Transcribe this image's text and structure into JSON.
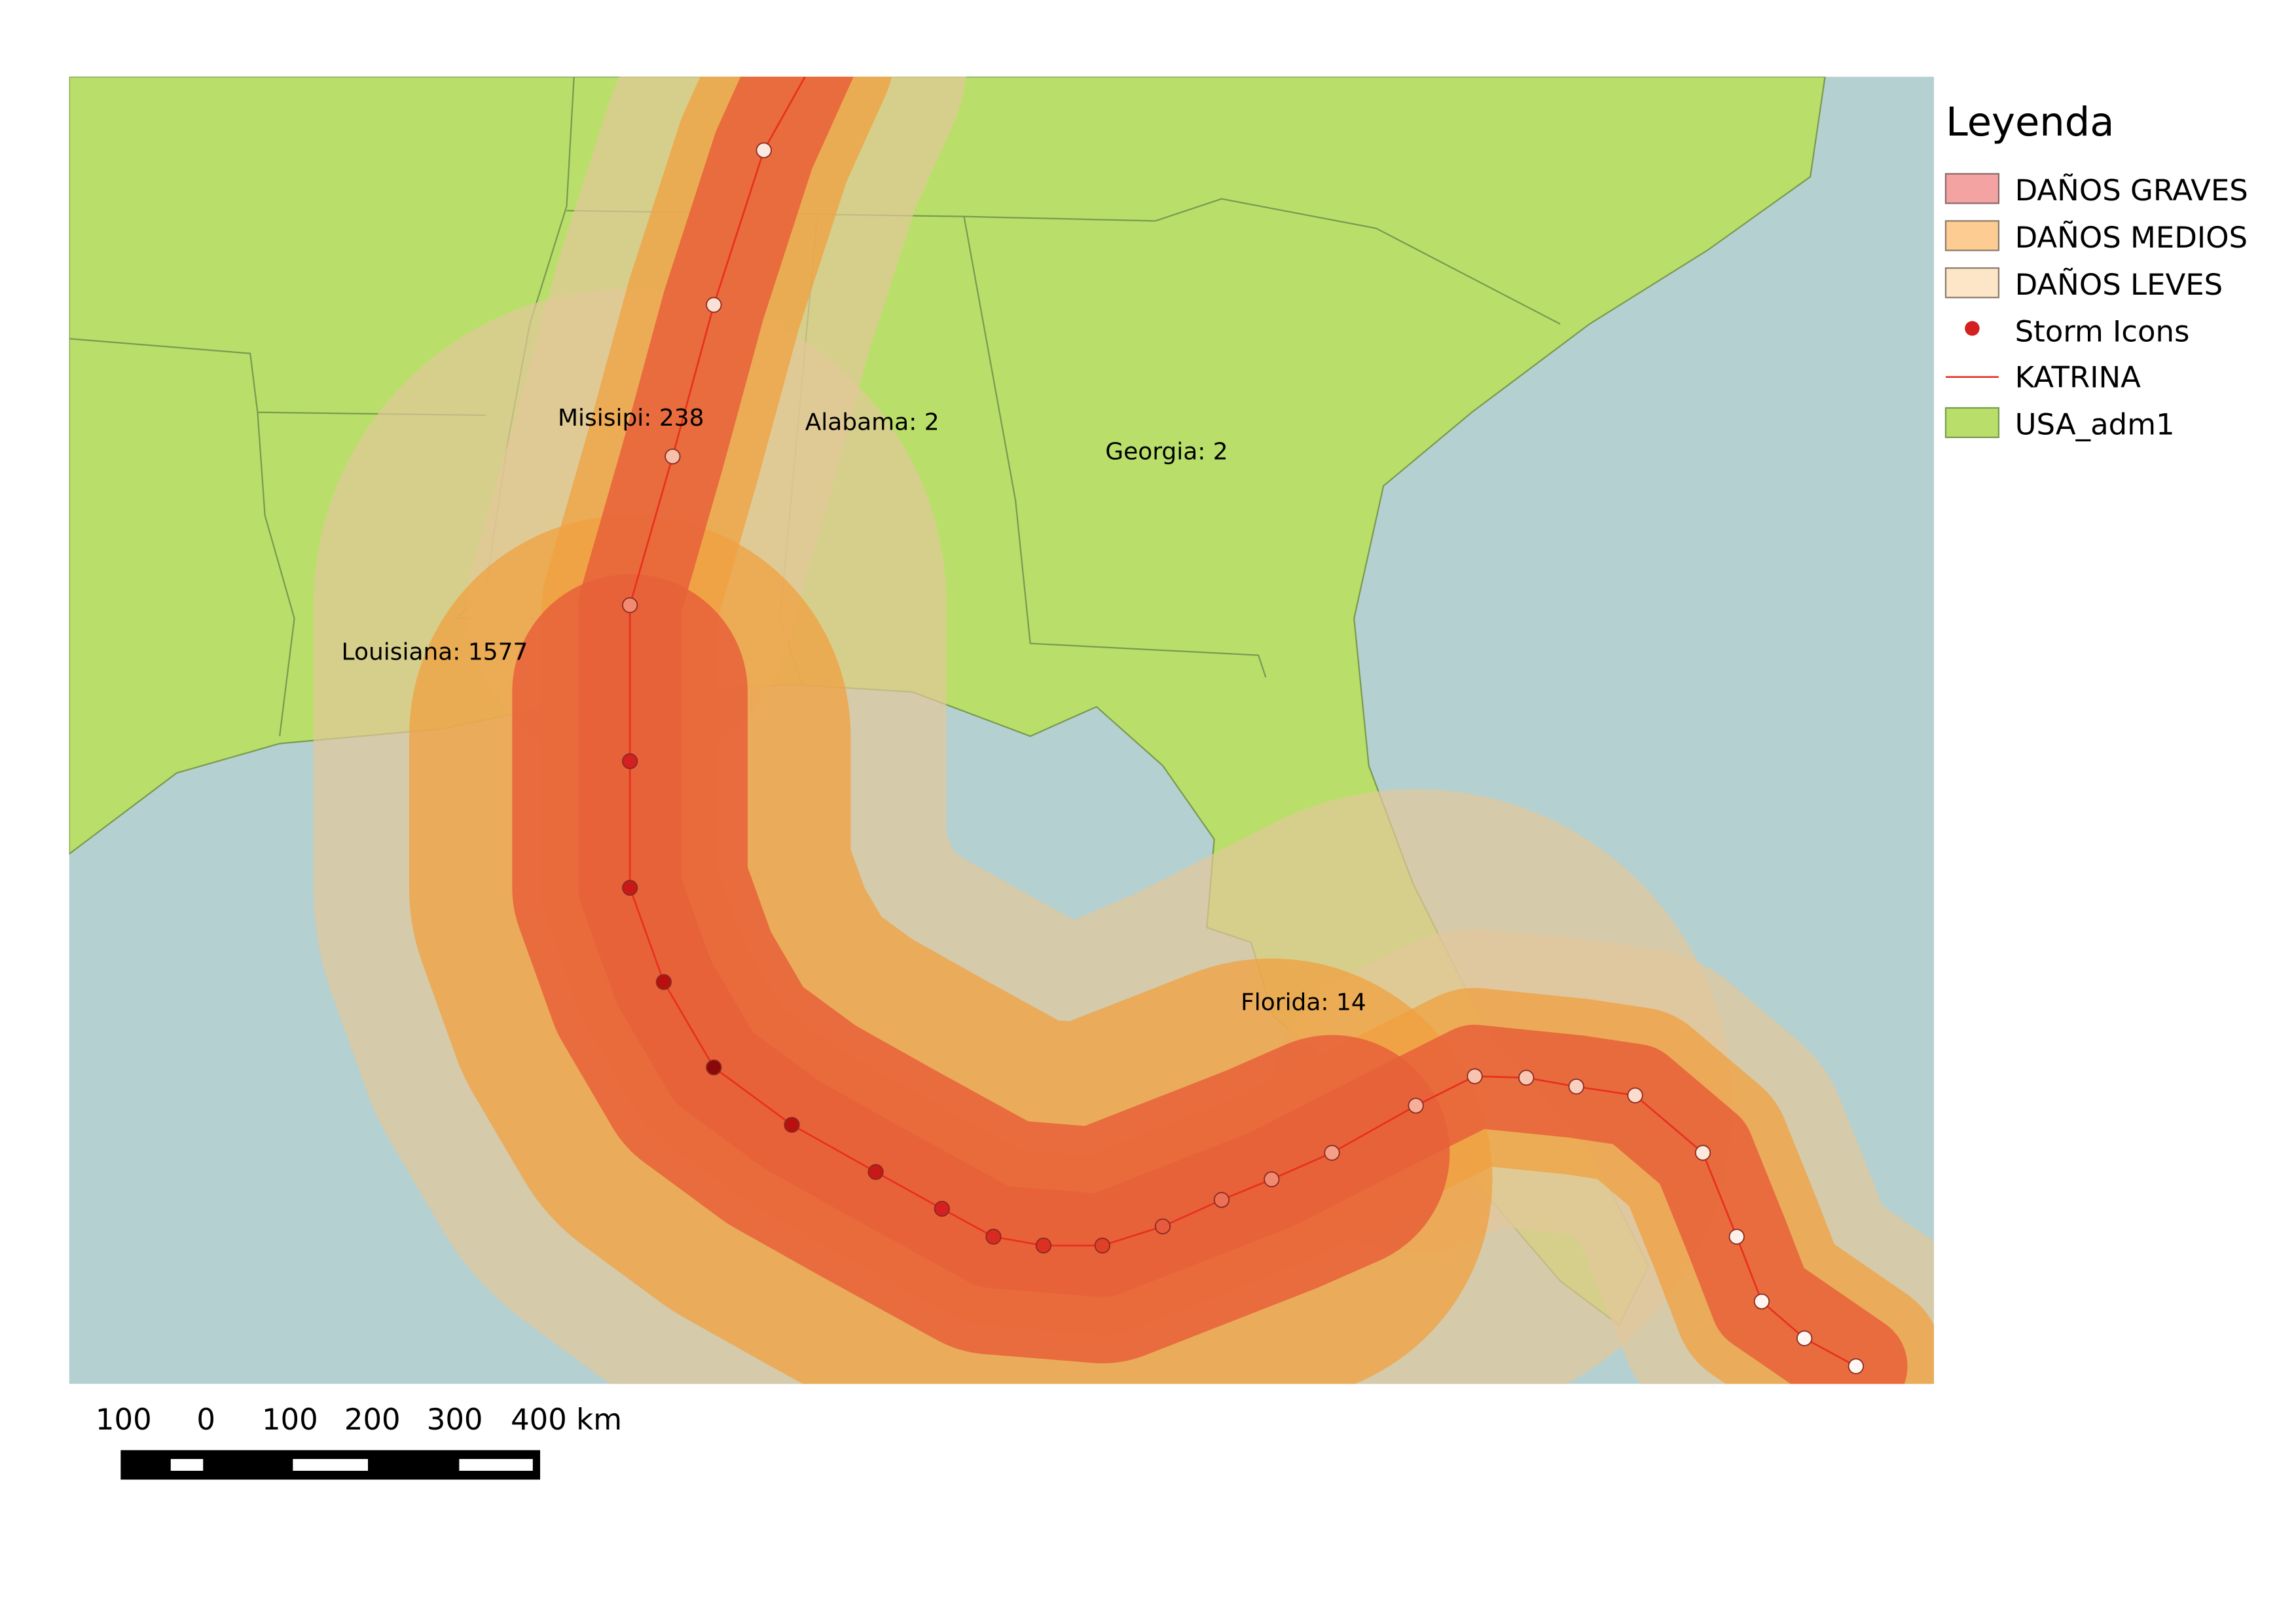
{
  "legend": {
    "title": "Leyenda",
    "items": [
      "DAÑOS GRAVES",
      "DAÑOS MEDIOS",
      "DAÑOS LEVES",
      "Storm Icons",
      "KATRINA",
      "USA_adm1"
    ]
  },
  "labels": [
    "Misisipi: 238",
    "Alabama: 2",
    "Georgia: 2",
    "Louisiana: 1577",
    "Florida: 14"
  ],
  "scale_bar": {
    "labels": [
      "100",
      "0",
      "100",
      "200",
      "300",
      "400 km"
    ]
  }
}
